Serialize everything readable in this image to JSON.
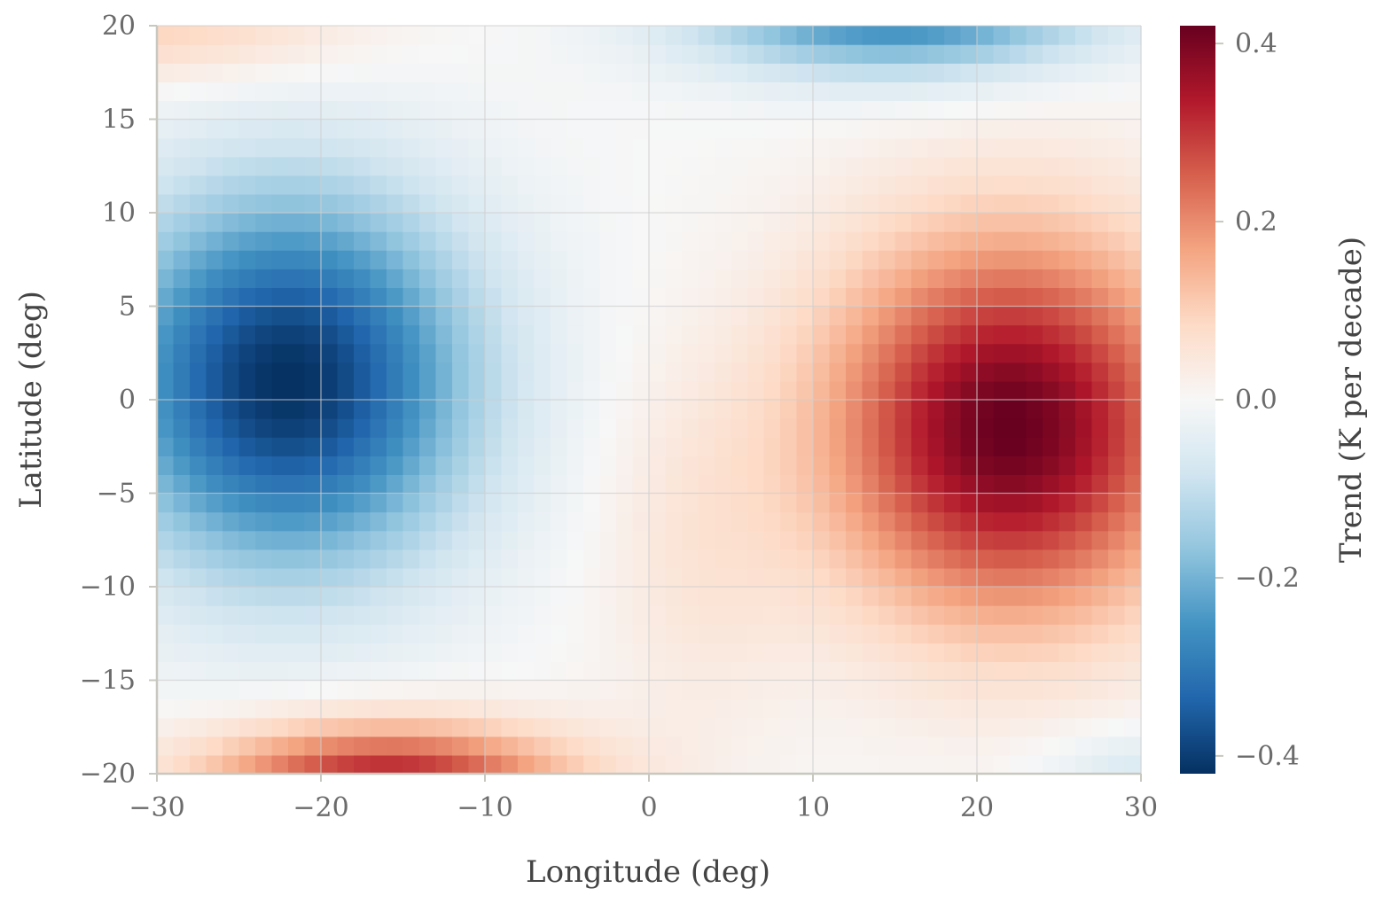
{
  "chart_data": {
    "type": "heatmap",
    "title": "",
    "xlabel": "Longitude (deg)",
    "ylabel": "Latitude (deg)",
    "colorbar_label": "Trend (K per decade)",
    "xlim": [
      -30,
      30
    ],
    "ylim": [
      -20,
      20
    ],
    "xticks": [
      -30,
      -20,
      -10,
      0,
      10,
      20,
      30
    ],
    "yticks": [
      -20,
      -15,
      -10,
      -5,
      0,
      5,
      10,
      15,
      20
    ],
    "xtick_labels": [
      "−30",
      "−20",
      "−10",
      "0",
      "10",
      "20",
      "30"
    ],
    "ytick_labels": [
      "−20",
      "−15",
      "−10",
      "−5",
      "0",
      "5",
      "10",
      "15",
      "20"
    ],
    "colorbar_range": [
      -0.42,
      0.42
    ],
    "colorbar_ticks": [
      -0.4,
      -0.2,
      0.0,
      0.2,
      0.4
    ],
    "colorbar_tick_labels": [
      "−0.4",
      "−0.2",
      "0.0",
      "0.2",
      "0.4"
    ],
    "colormap": "RdBu_r",
    "grid": true,
    "grid_resolution_deg": 1,
    "features": [
      {
        "name": "cold anomaly",
        "center": [
          -22,
          1
        ],
        "peak": -0.42
      },
      {
        "name": "warm anomaly",
        "center": [
          22,
          -1.5
        ],
        "peak": 0.42
      },
      {
        "name": "warm band south",
        "center": [
          -15,
          -19
        ],
        "peak": 0.34
      },
      {
        "name": "cold band north",
        "center": [
          15,
          19.5
        ],
        "peak": -0.3
      }
    ]
  }
}
